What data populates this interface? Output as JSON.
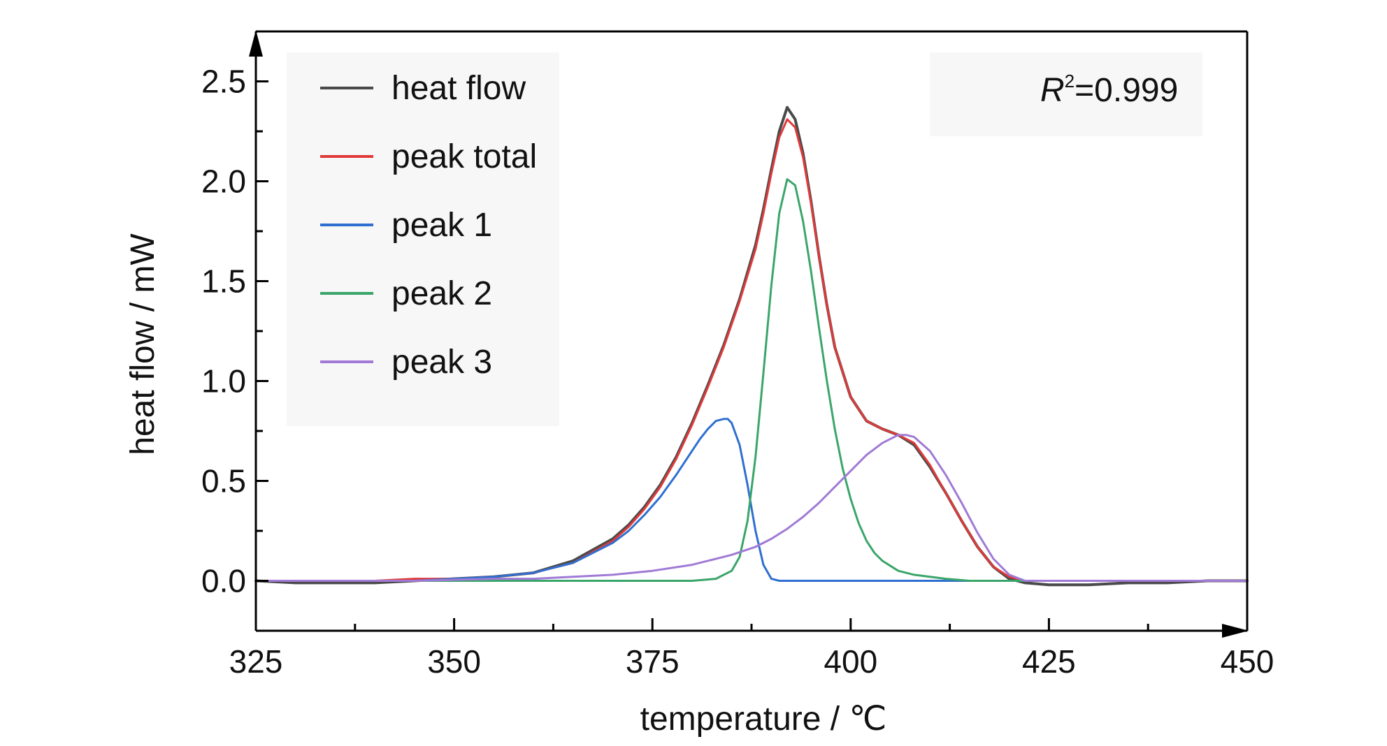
{
  "chart_data": {
    "type": "line",
    "xlabel": "temperature / ℃",
    "ylabel": "heat flow / mW",
    "xlim": [
      325,
      450
    ],
    "ylim": [
      -0.25,
      2.75
    ],
    "x_ticks": [
      325,
      350,
      375,
      400,
      425,
      450
    ],
    "x_tick_labels": [
      "325",
      "350",
      "375",
      "400",
      "425",
      "450"
    ],
    "y_ticks": [
      0.0,
      0.5,
      1.0,
      1.5,
      2.0,
      2.5
    ],
    "y_tick_labels": [
      "0.0",
      "0.5",
      "1.0",
      "1.5",
      "2.0",
      "2.5"
    ],
    "grid": false,
    "legend_position": "top-left",
    "annotation": {
      "base": "R",
      "sup": "2",
      "rest": "=0.999"
    },
    "series": [
      {
        "name": "heat flow",
        "color": "#4a4a4a",
        "x": [
          325,
          330,
          335,
          340,
          345,
          350,
          355,
          360,
          365,
          370,
          372,
          374,
          376,
          378,
          380,
          382,
          384,
          386,
          388,
          389,
          390,
          391,
          392,
          393,
          394,
          395,
          396,
          397,
          398,
          400,
          402,
          404,
          406,
          408,
          410,
          412,
          414,
          416,
          418,
          420,
          422,
          425,
          430,
          435,
          440,
          445,
          450
        ],
        "y": [
          0.0,
          -0.01,
          -0.01,
          -0.01,
          0.0,
          0.01,
          0.02,
          0.04,
          0.1,
          0.21,
          0.28,
          0.37,
          0.48,
          0.62,
          0.79,
          0.98,
          1.18,
          1.41,
          1.68,
          1.86,
          2.06,
          2.25,
          2.37,
          2.31,
          2.14,
          1.9,
          1.63,
          1.38,
          1.17,
          0.92,
          0.8,
          0.76,
          0.73,
          0.68,
          0.57,
          0.44,
          0.3,
          0.17,
          0.07,
          0.01,
          -0.01,
          -0.02,
          -0.02,
          -0.01,
          -0.01,
          0.0,
          0.0
        ]
      },
      {
        "name": "peak total",
        "color": "#e03a3a",
        "x": [
          325,
          330,
          335,
          340,
          345,
          350,
          355,
          360,
          365,
          370,
          372,
          374,
          376,
          378,
          380,
          382,
          384,
          386,
          388,
          389,
          390,
          391,
          392,
          393,
          394,
          395,
          396,
          397,
          398,
          400,
          402,
          404,
          406,
          408,
          410,
          412,
          414,
          416,
          418,
          420,
          422,
          425,
          430,
          435,
          440,
          445,
          450
        ],
        "y": [
          0.0,
          0.0,
          0.0,
          0.0,
          0.01,
          0.01,
          0.02,
          0.04,
          0.09,
          0.2,
          0.27,
          0.36,
          0.47,
          0.61,
          0.78,
          0.97,
          1.17,
          1.4,
          1.66,
          1.84,
          2.04,
          2.22,
          2.31,
          2.27,
          2.12,
          1.89,
          1.63,
          1.38,
          1.17,
          0.92,
          0.8,
          0.76,
          0.73,
          0.69,
          0.58,
          0.44,
          0.3,
          0.17,
          0.07,
          0.02,
          0.0,
          0.0,
          0.0,
          0.0,
          0.0,
          0.0,
          0.0
        ]
      },
      {
        "name": "peak 1",
        "color": "#2f6fd0",
        "x": [
          325,
          335,
          345,
          350,
          355,
          360,
          365,
          370,
          372,
          374,
          376,
          378,
          380,
          381,
          382,
          383,
          384,
          384.5,
          385,
          386,
          387,
          388,
          389,
          390,
          391,
          395,
          400,
          425,
          450
        ],
        "y": [
          0.0,
          0.0,
          0.0,
          0.01,
          0.02,
          0.04,
          0.09,
          0.19,
          0.25,
          0.33,
          0.42,
          0.53,
          0.65,
          0.71,
          0.76,
          0.8,
          0.81,
          0.81,
          0.79,
          0.68,
          0.48,
          0.25,
          0.08,
          0.01,
          0.0,
          0.0,
          0.0,
          0.0,
          0.0
        ]
      },
      {
        "name": "peak 2",
        "color": "#3aa56a",
        "x": [
          325,
          350,
          375,
          380,
          383,
          385,
          386,
          387,
          388,
          389,
          390,
          391,
          392,
          393,
          394,
          395,
          396,
          397,
          398,
          399,
          400,
          401,
          402,
          403,
          404,
          406,
          408,
          410,
          412,
          415,
          420,
          425,
          450
        ],
        "y": [
          0.0,
          0.0,
          0.0,
          0.0,
          0.01,
          0.05,
          0.12,
          0.3,
          0.62,
          1.04,
          1.48,
          1.84,
          2.01,
          1.98,
          1.8,
          1.55,
          1.27,
          1.0,
          0.76,
          0.56,
          0.41,
          0.29,
          0.2,
          0.14,
          0.1,
          0.05,
          0.03,
          0.02,
          0.01,
          0.0,
          0.0,
          0.0,
          0.0
        ]
      },
      {
        "name": "peak 3",
        "color": "#a07ad6",
        "x": [
          325,
          335,
          345,
          355,
          360,
          365,
          370,
          375,
          380,
          385,
          388,
          390,
          392,
          394,
          396,
          398,
          400,
          402,
          404,
          406,
          407,
          408,
          410,
          412,
          414,
          416,
          418,
          420,
          422,
          425,
          430,
          440,
          450
        ],
        "y": [
          0.0,
          0.0,
          0.0,
          0.01,
          0.01,
          0.02,
          0.03,
          0.05,
          0.08,
          0.13,
          0.17,
          0.21,
          0.26,
          0.32,
          0.39,
          0.47,
          0.55,
          0.63,
          0.69,
          0.73,
          0.73,
          0.72,
          0.65,
          0.53,
          0.39,
          0.24,
          0.11,
          0.03,
          0.0,
          0.0,
          0.0,
          0.0,
          0.0
        ]
      }
    ]
  }
}
